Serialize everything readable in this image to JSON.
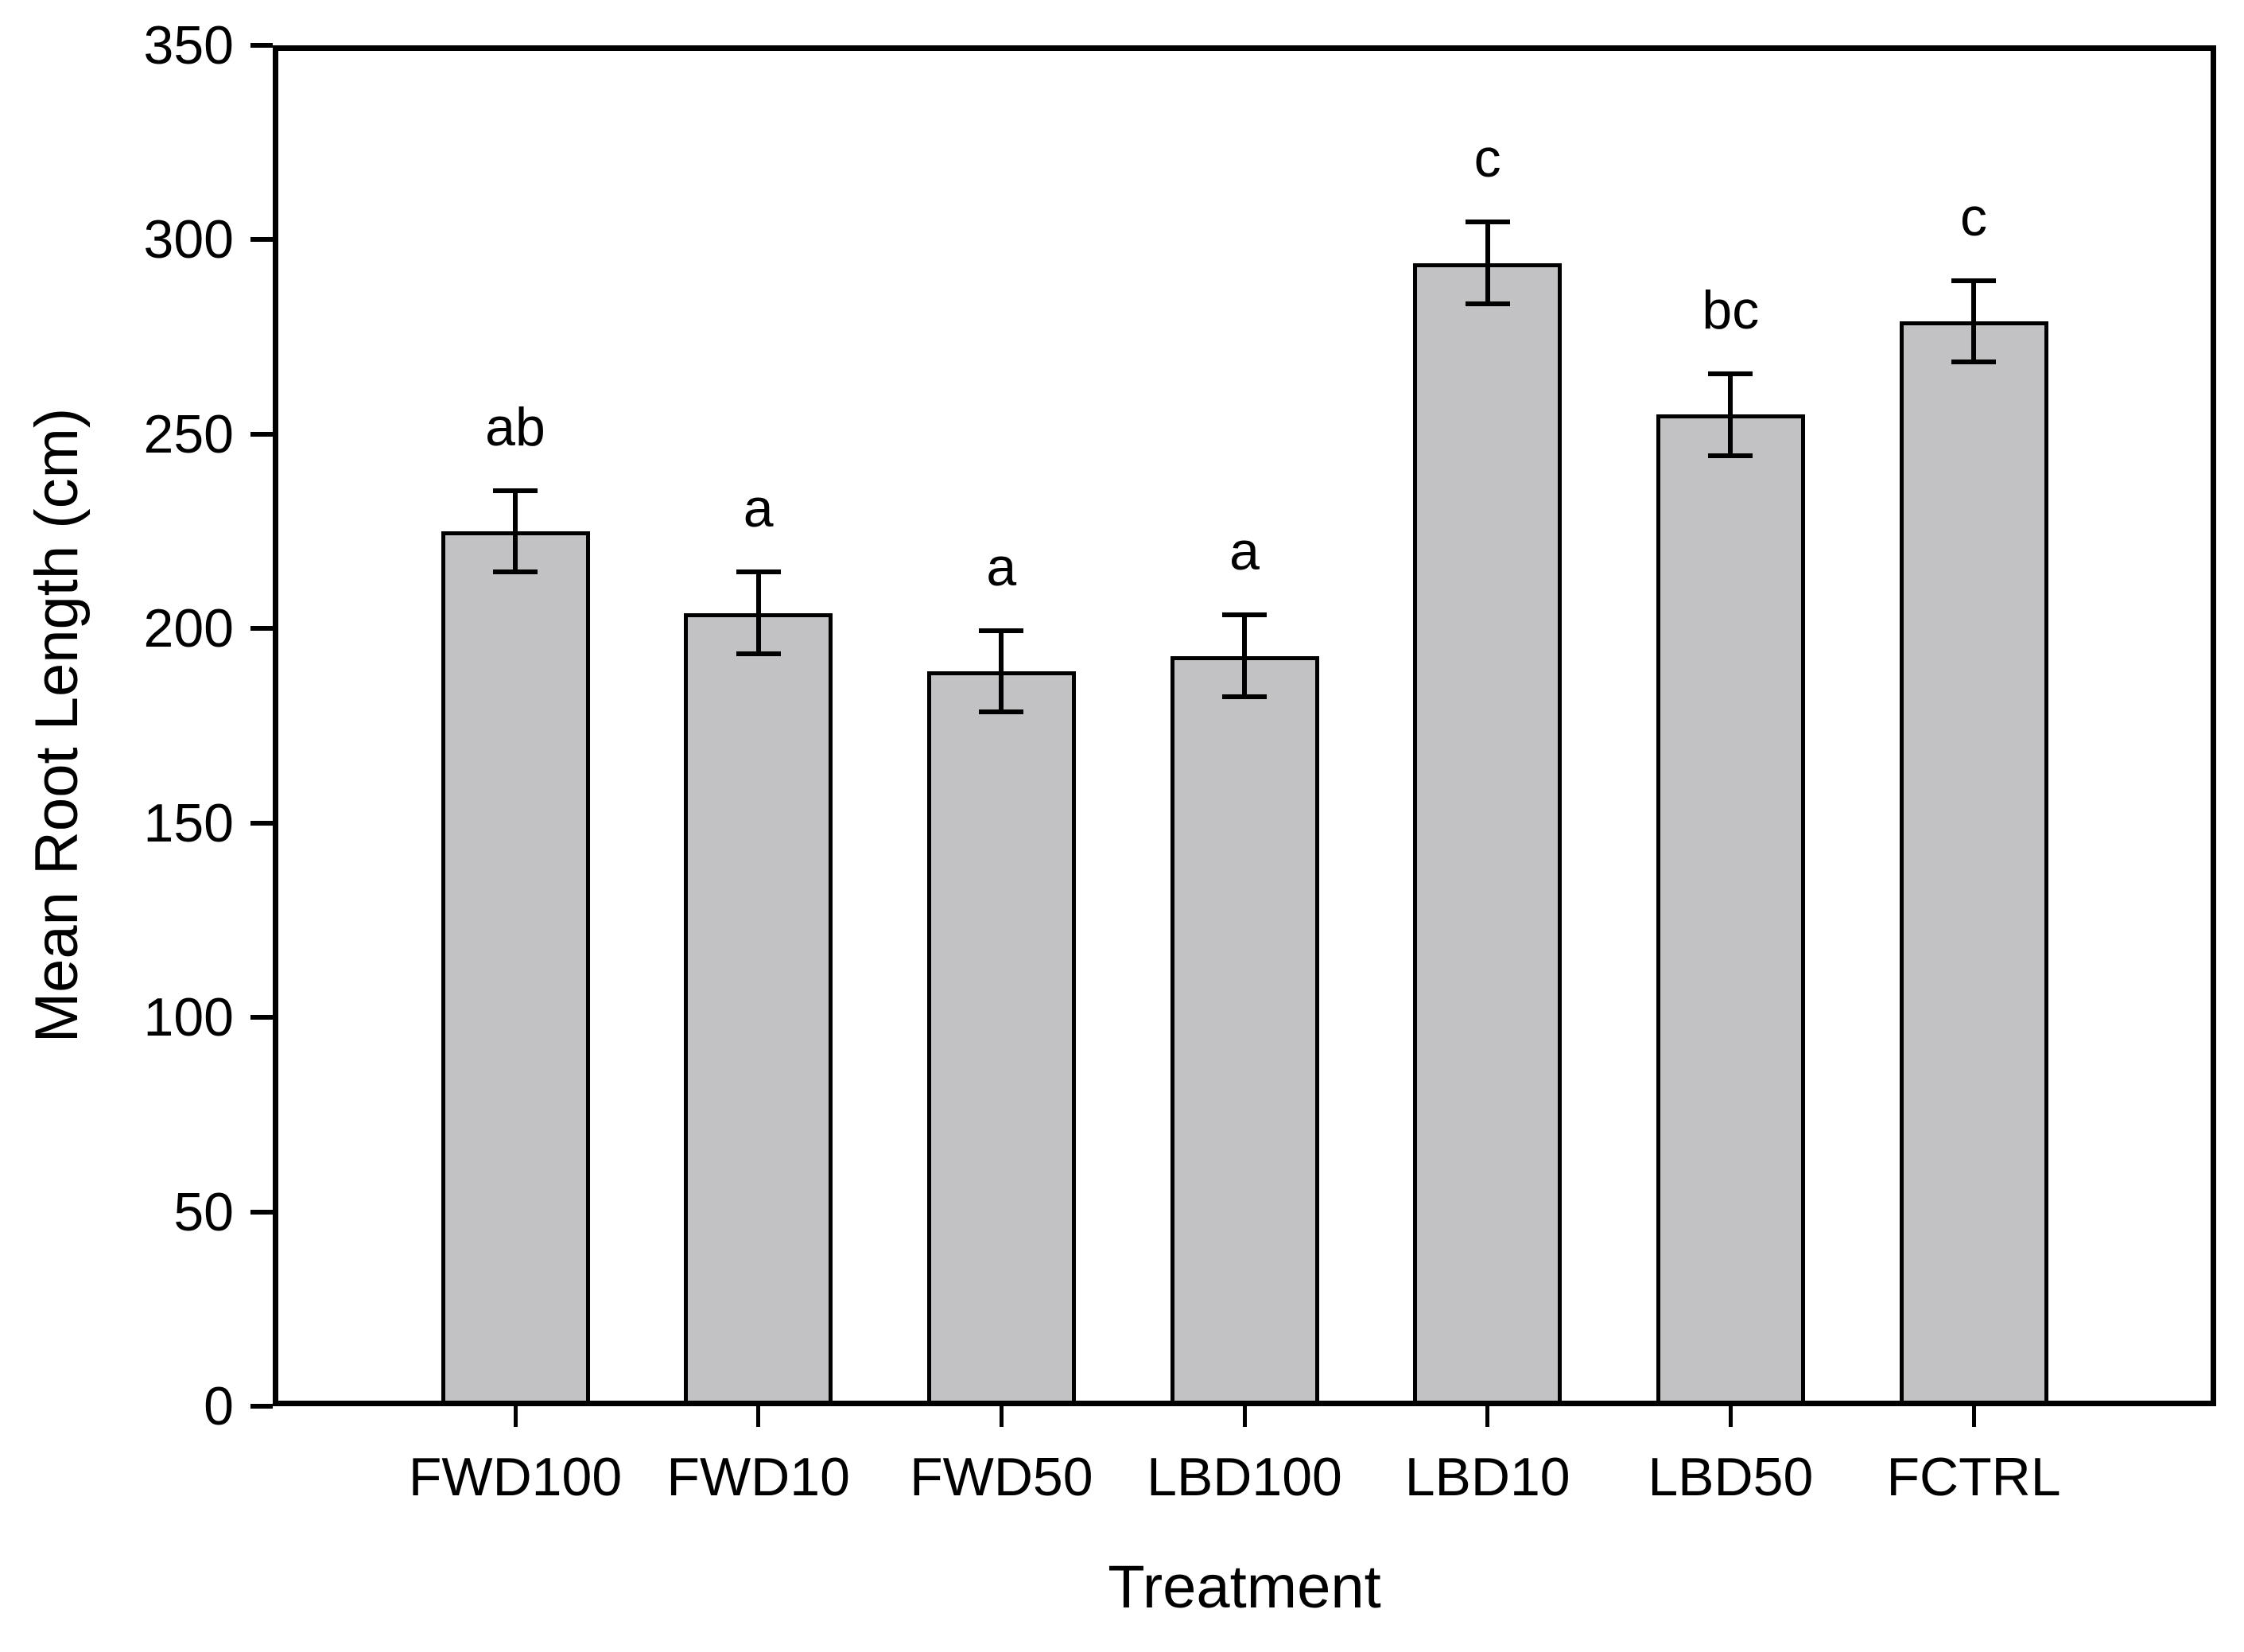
{
  "figure": {
    "background": "#ffffff",
    "ink_color": "#000000"
  },
  "chart_data": {
    "type": "bar",
    "title": "",
    "xlabel": "Treatment",
    "ylabel": "Mean Root Length (cm)",
    "ylim": [
      0,
      350
    ],
    "yticks": [
      0,
      50,
      100,
      150,
      200,
      250,
      300,
      350
    ],
    "categories": [
      "FWD100",
      "FWD10",
      "FWD50",
      "LBD100",
      "LBD10",
      "LBD50",
      "FCTRL"
    ],
    "values": [
      225,
      204,
      189,
      193,
      294,
      255,
      279
    ],
    "errors": [
      10.5,
      10.5,
      10.5,
      10.5,
      10.5,
      10.5,
      10.5
    ],
    "sig_letters": [
      "ab",
      "a",
      "a",
      "a",
      "c",
      "bc",
      "c"
    ],
    "bar_fill": "#c2c2c4",
    "bar_edge": "#000000",
    "grid": false,
    "legend": null
  }
}
